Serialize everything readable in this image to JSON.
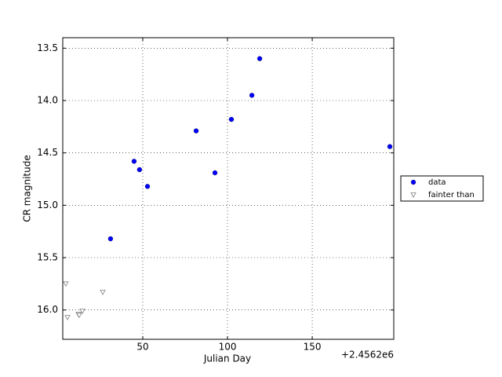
{
  "chart_data": {
    "type": "scatter",
    "x_label": "Julian Day",
    "y_label": "CR magnitude",
    "x_offset_label": "+2.4562e6",
    "xlim": [
      2.8,
      198.1
    ],
    "xticks": [
      50,
      100,
      150
    ],
    "ylim": [
      16.28,
      13.4
    ],
    "yticks": [
      13.5,
      {
        "value": 14,
        "label": "14.0"
      },
      14.5,
      {
        "value": 15,
        "label": "15.0"
      },
      15.5,
      {
        "value": 16,
        "label": "16.0"
      }
    ],
    "grid": true,
    "legend": "right",
    "series": [
      {
        "name": "data",
        "color": "#0000ff",
        "marker": "circle",
        "x": [
          31.0,
          44.9,
          48.1,
          52.8,
          81.5,
          92.6,
          102.3,
          114.4,
          119.0,
          195.8
        ],
        "values": [
          15.32,
          14.58,
          14.66,
          14.82,
          14.29,
          14.69,
          14.18,
          13.95,
          13.6,
          14.44
        ]
      },
      {
        "name": "fainter than",
        "color": "#808080",
        "marker": "triangle-down",
        "x": [
          4.6,
          5.6,
          12.0,
          12.5,
          14.4,
          26.4
        ],
        "values": [
          15.75,
          16.07,
          16.04,
          16.05,
          16.01,
          15.83
        ]
      }
    ]
  }
}
